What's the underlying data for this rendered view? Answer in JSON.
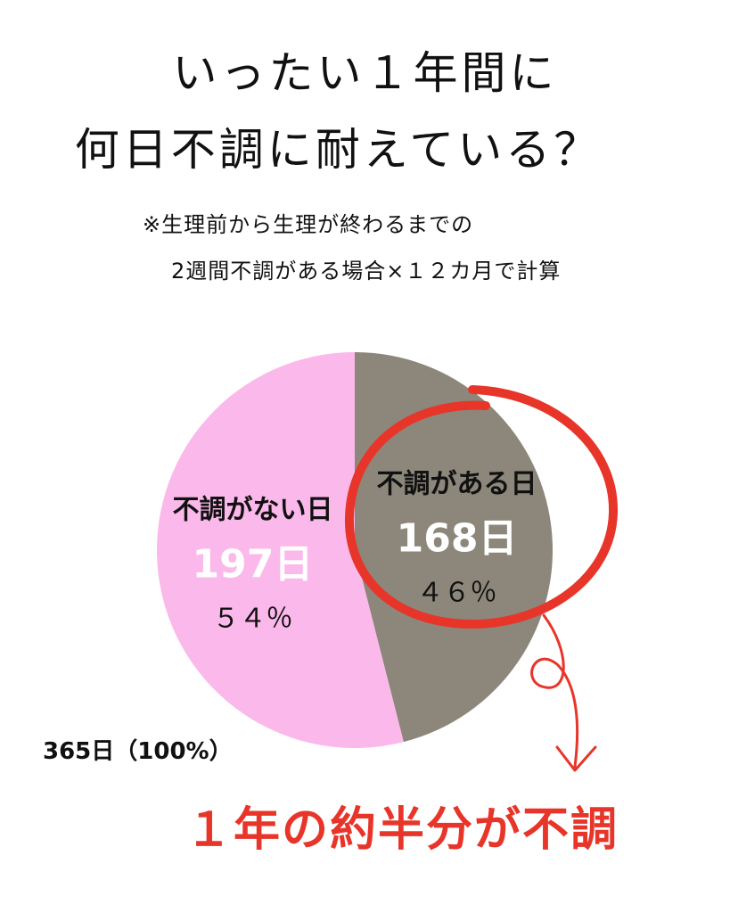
{
  "title": {
    "line1": "いったい１年間に",
    "line2": "何日不調に耐えている？"
  },
  "note": {
    "line1": "※生理前から生理が終わるまでの",
    "line2": "2週間不調がある場合×１２カ月で計算"
  },
  "chart_data": {
    "type": "pie",
    "categories": [
      "不調がない日",
      "不調がある日"
    ],
    "values": [
      197,
      168
    ],
    "value_labels": [
      "197日",
      "168日"
    ],
    "percent_labels": [
      "５４％",
      "４６％"
    ],
    "colors": [
      "#fbb8ea",
      "#8c877a"
    ],
    "total_label": "365日（100%）",
    "highlight_color": "#e8352a"
  },
  "conclusion": "１年の約半分が不調"
}
